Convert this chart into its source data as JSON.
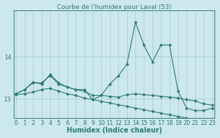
{
  "title": "Courbe de l'humidex pour Laval (53)",
  "xlabel": "Humidex (Indice chaleur)",
  "background_color": "#cce8ed",
  "line_color": "#2e7b6e",
  "grid_color": "#aed0d8",
  "x_ticks": [
    0,
    1,
    2,
    3,
    4,
    5,
    6,
    7,
    8,
    9,
    10,
    11,
    12,
    13,
    14,
    15,
    16,
    17,
    18,
    19,
    20,
    21,
    22,
    23
  ],
  "y_ticks": [
    13,
    14
  ],
  "ylim": [
    12.55,
    15.1
  ],
  "xlim": [
    -0.3,
    23.3
  ],
  "title_fontsize": 6.5,
  "tick_fontsize": 6,
  "xlabel_fontsize": 7,
  "series": [
    {
      "x": [
        0,
        1,
        2,
        3,
        4,
        5,
        6,
        7,
        8,
        9,
        10,
        11,
        12,
        13,
        14,
        15,
        16,
        17,
        18,
        19,
        20,
        21,
        22,
        23
      ],
      "y": [
        13.12,
        13.22,
        13.4,
        13.35,
        13.58,
        13.38,
        13.28,
        13.22,
        13.22,
        12.98,
        13.08,
        13.35,
        13.55,
        13.82,
        14.82,
        14.28,
        13.88,
        14.28,
        14.28,
        13.18,
        12.78,
        12.72,
        12.72,
        12.78
      ]
    },
    {
      "x": [
        0,
        1,
        2,
        3,
        4,
        5,
        6,
        7,
        8,
        9,
        10,
        11,
        12,
        13,
        14,
        15,
        16,
        17,
        18,
        19,
        20,
        21,
        22,
        23
      ],
      "y": [
        13.12,
        13.22,
        13.38,
        13.38,
        13.55,
        13.35,
        13.28,
        13.22,
        13.18,
        13.08,
        13.08,
        13.06,
        13.04,
        13.1,
        13.12,
        13.1,
        13.08,
        13.06,
        13.04,
        13.02,
        12.98,
        12.95,
        12.88,
        12.85
      ]
    },
    {
      "x": [
        0,
        1,
        2,
        3,
        4,
        5,
        6,
        7,
        8,
        9,
        10,
        11,
        12,
        13,
        14,
        15,
        16,
        17,
        18,
        19,
        20,
        21,
        22,
        23
      ],
      "y": [
        13.1,
        13.12,
        13.16,
        13.22,
        13.25,
        13.18,
        13.12,
        13.08,
        13.02,
        12.98,
        12.94,
        12.9,
        12.86,
        12.82,
        12.78,
        12.74,
        12.7,
        12.66,
        12.62,
        12.58,
        12.54,
        12.48,
        12.42,
        12.38
      ]
    }
  ]
}
